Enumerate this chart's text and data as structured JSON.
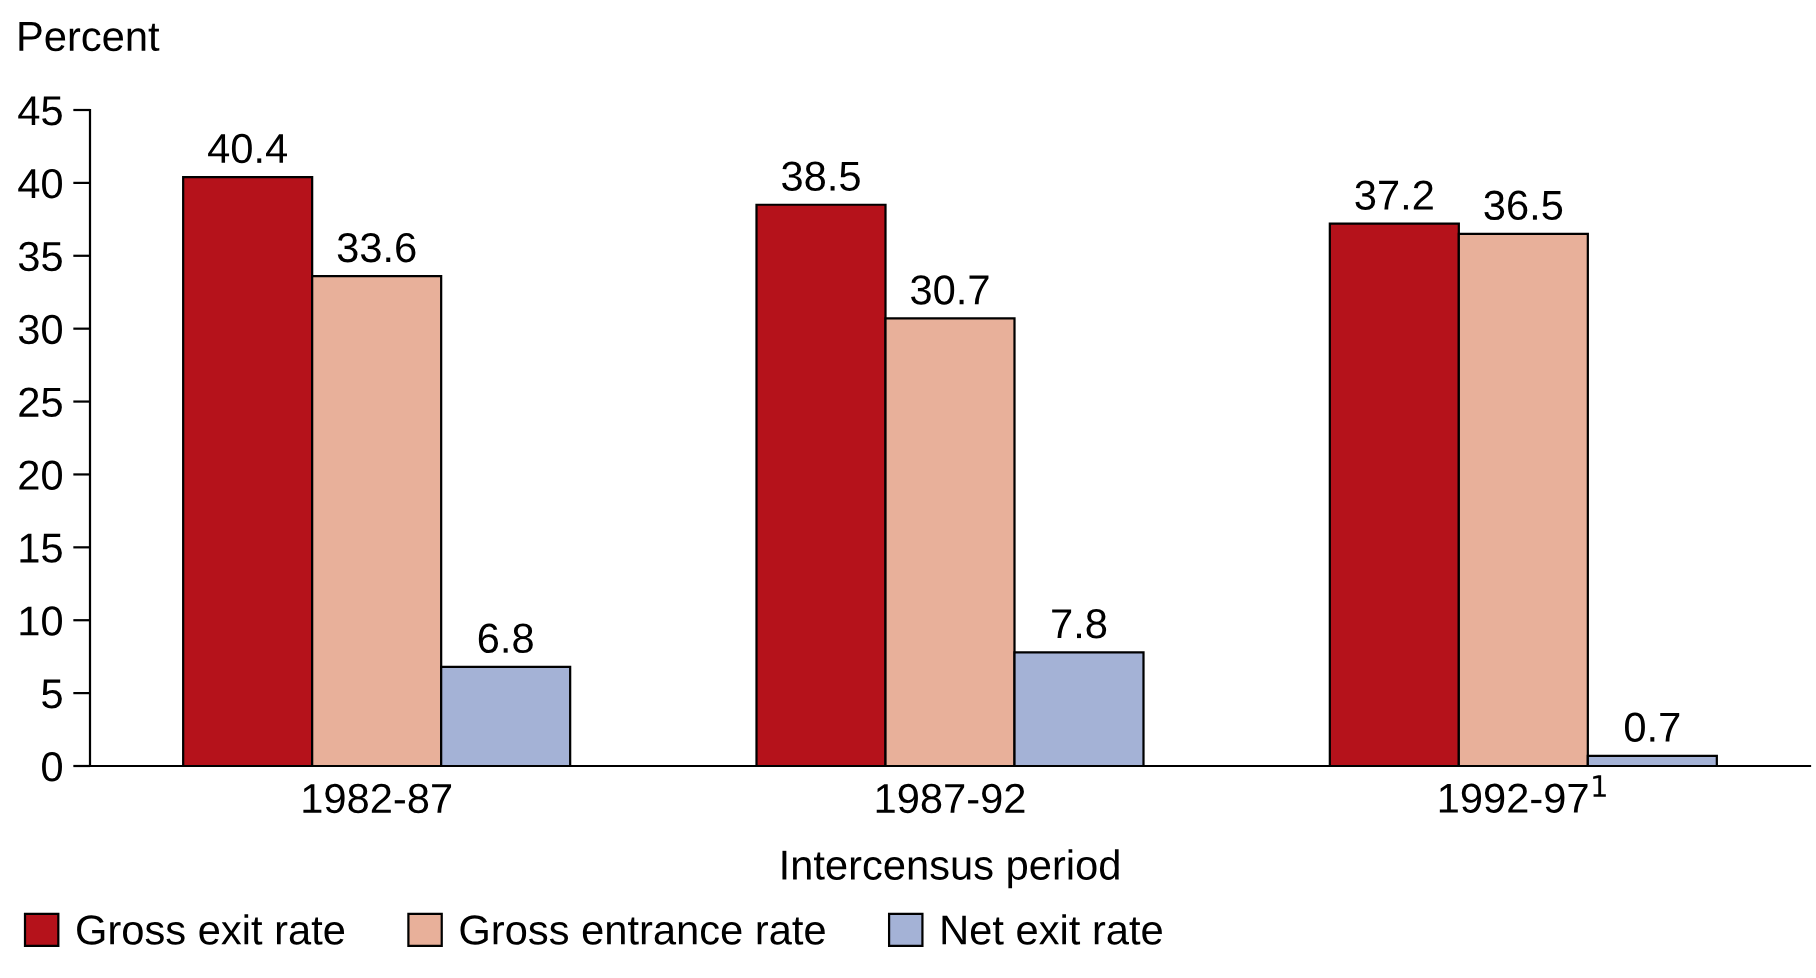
{
  "chart_data": {
    "type": "bar",
    "ylabel": "Percent",
    "xlabel": "Intercensus period",
    "categories": [
      "1982-87",
      "1987-92",
      "1992-97$^{1}$"
    ],
    "series": [
      {
        "name": "Gross exit rate",
        "color": "#b5121b",
        "values": [
          40.4,
          38.5,
          37.2
        ]
      },
      {
        "name": "Gross entrance rate",
        "color": "#e8b09a",
        "values": [
          33.6,
          30.7,
          36.5
        ]
      },
      {
        "name": "Net exit rate",
        "color": "#a4b2d6",
        "values": [
          6.8,
          7.8,
          0.7
        ]
      }
    ],
    "ylim": [
      0,
      45
    ],
    "yticks": [
      0,
      5,
      10,
      15,
      20,
      25,
      30,
      35,
      40,
      45
    ],
    "grid": false,
    "legend": "bottom",
    "data_labels": true
  }
}
